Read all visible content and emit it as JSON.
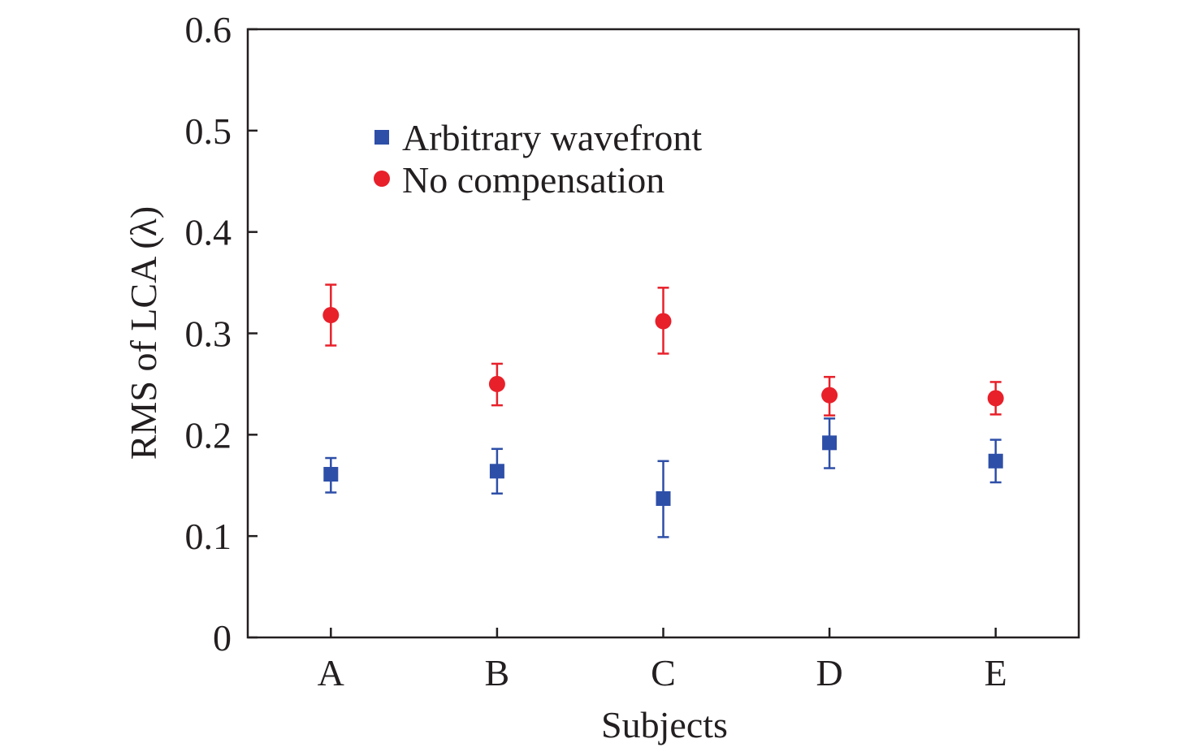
{
  "chart_data": {
    "type": "scatter",
    "title": "",
    "xlabel": "Subjects",
    "ylabel": "RMS of LCA (λ)",
    "categories": [
      "A",
      "B",
      "C",
      "D",
      "E"
    ],
    "ylim": [
      0,
      0.6
    ],
    "yticks": [
      "0",
      "0.1",
      "0.2",
      "0.3",
      "0.4",
      "0.5",
      "0.6"
    ],
    "grid": false,
    "legend_position": "top-left",
    "series": [
      {
        "name": "Arbitrary wavefront",
        "marker": "square",
        "color": "#2e4fa8",
        "values": [
          0.161,
          0.164,
          0.137,
          0.192,
          0.174
        ],
        "err_upper": [
          0.177,
          0.186,
          0.174,
          0.216,
          0.195
        ],
        "err_lower": [
          0.143,
          0.142,
          0.099,
          0.167,
          0.153
        ]
      },
      {
        "name": "No compensation",
        "marker": "circle",
        "color": "#e8202a",
        "values": [
          0.318,
          0.25,
          0.312,
          0.239,
          0.236
        ],
        "err_upper": [
          0.348,
          0.27,
          0.345,
          0.257,
          0.252
        ],
        "err_lower": [
          0.288,
          0.229,
          0.28,
          0.219,
          0.22
        ]
      }
    ]
  }
}
